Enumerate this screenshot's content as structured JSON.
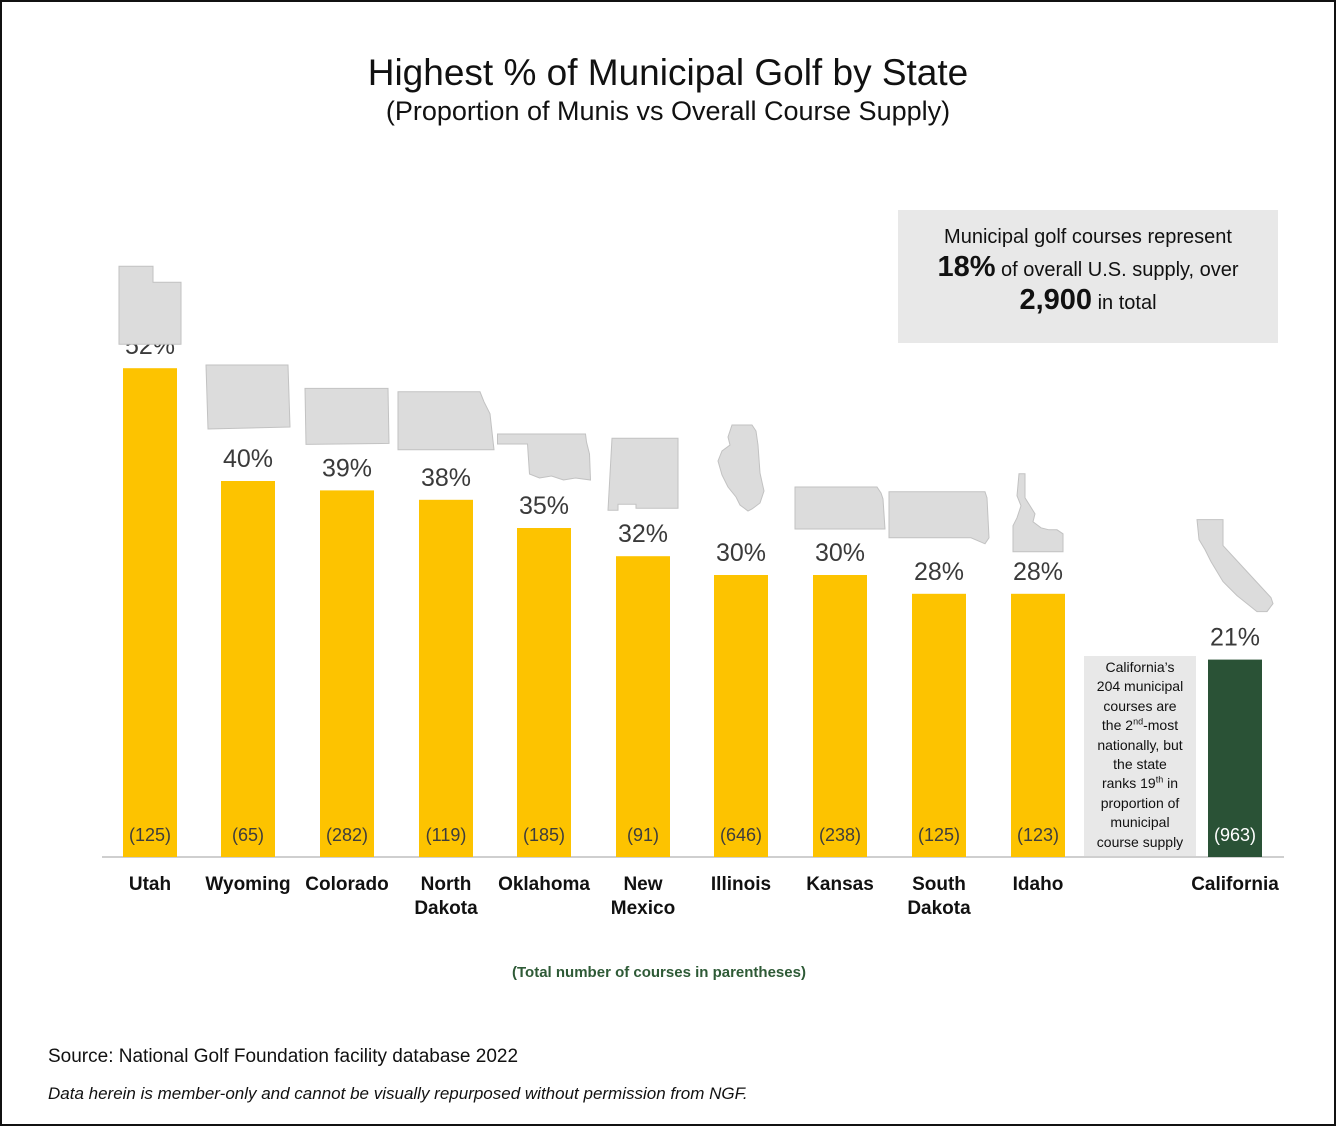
{
  "chart_data": {
    "type": "bar",
    "title": "Highest % of Municipal Golf by State",
    "subtitle": "(Proportion of Munis vs Overall Course Supply)",
    "categories": [
      "Utah",
      "Wyoming",
      "Colorado",
      "North Dakota",
      "Oklahoma",
      "New Mexico",
      "Illinois",
      "Kansas",
      "South Dakota",
      "Idaho",
      "California"
    ],
    "category_lines": [
      [
        "Utah"
      ],
      [
        "Wyoming"
      ],
      [
        "Colorado"
      ],
      [
        "North",
        "Dakota"
      ],
      [
        "Oklahoma"
      ],
      [
        "New",
        "Mexico"
      ],
      [
        "Illinois"
      ],
      [
        "Kansas"
      ],
      [
        "South",
        "Dakota"
      ],
      [
        "Idaho"
      ],
      [
        "California"
      ]
    ],
    "values": [
      52,
      40,
      39,
      38,
      35,
      32,
      30,
      30,
      28,
      28,
      21
    ],
    "value_labels": [
      "52%",
      "40%",
      "39%",
      "38%",
      "35%",
      "32%",
      "30%",
      "30%",
      "28%",
      "28%",
      "21%"
    ],
    "course_totals": [
      "(125)",
      "(65)",
      "(282)",
      "(119)",
      "(185)",
      "(91)",
      "(646)",
      "(238)",
      "(125)",
      "(123)",
      "(963)"
    ],
    "highlight_index": 10,
    "colors": {
      "bar": "#FDC300",
      "highlight": "#2A5236",
      "state_shape": "#DCDCDC",
      "note_text": "#2E5A36"
    },
    "icons": [
      "utah-shape-icon",
      "wyoming-shape-icon",
      "colorado-shape-icon",
      "north-dakota-shape-icon",
      "oklahoma-shape-icon",
      "new-mexico-shape-icon",
      "illinois-shape-icon",
      "kansas-shape-icon",
      "south-dakota-shape-icon",
      "idaho-shape-icon",
      "california-shape-icon"
    ],
    "ylim": [
      0,
      55
    ],
    "grid": false,
    "legend": "none"
  },
  "callout": {
    "line1": "Municipal golf courses represent",
    "line2_big": "18%",
    "line2_rest": "of overall U.S. supply, over",
    "line3_big": "2,900",
    "line3_rest": "in total"
  },
  "california_note": {
    "line1": "California’s",
    "line2": "204 municipal",
    "line3": "courses are",
    "line4_pre": "the 2",
    "line4_sup": "nd",
    "line4_post": "-most",
    "line5": "nationally, but",
    "line6": "the state",
    "line7_pre": "ranks 19",
    "line7_sup": "th",
    "line7_post": " in",
    "line8": "proportion of",
    "line9": "municipal",
    "line10": "course supply"
  },
  "footnote": "(Total number of courses in parentheses)",
  "source": "Source: National Golf Foundation facility database 2022",
  "disclaimer": "Data herein is member-only and cannot be visually repurposed without permission from NGF."
}
